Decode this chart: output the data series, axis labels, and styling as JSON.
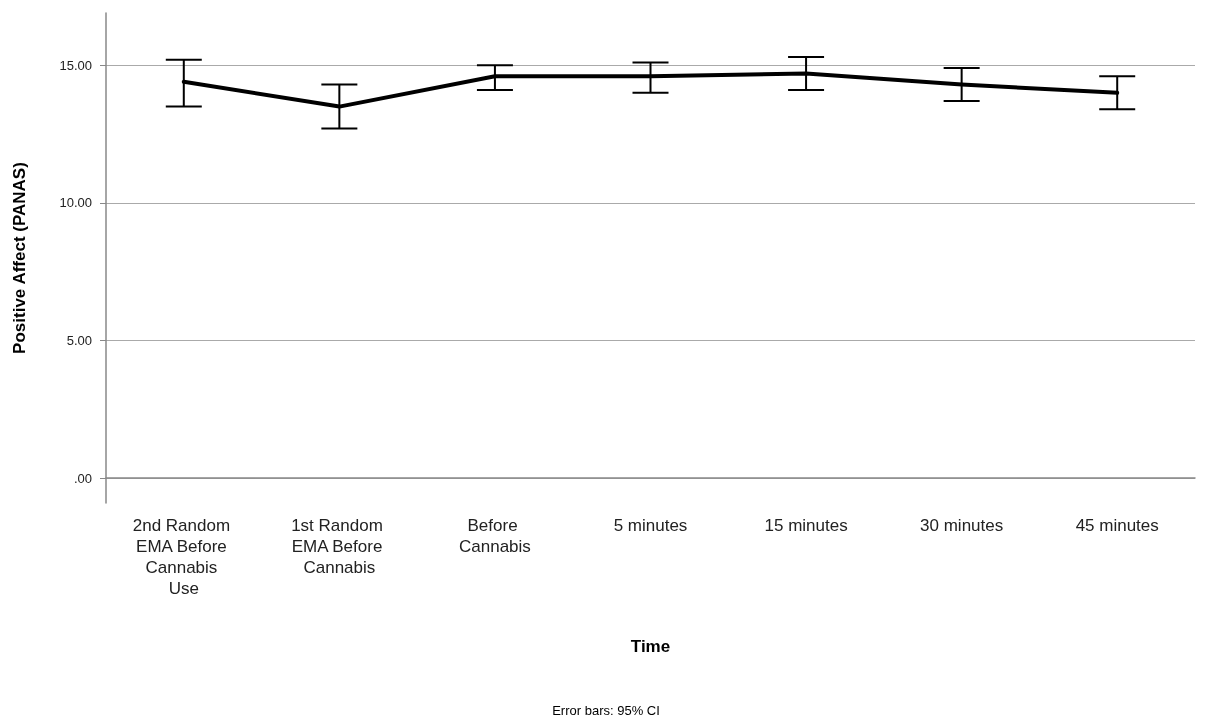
{
  "chart_data": {
    "type": "line",
    "xlabel": "Time",
    "ylabel": "Positive Affect (PANAS)",
    "categories": [
      "2nd Random EMA Before Cannabis Use",
      "1st Random EMA Before Cannabis",
      "Before Cannabis",
      "5 minutes",
      "15 minutes",
      "30 minutes",
      "45 minutes"
    ],
    "series": [
      {
        "color": "#000000",
        "values": [
          14.4,
          13.5,
          14.6,
          14.6,
          14.7,
          14.3,
          14.0
        ],
        "errors": [
          [
            13.5,
            15.2
          ],
          [
            12.7,
            14.3
          ],
          [
            14.1,
            15.0
          ],
          [
            14.0,
            15.1
          ],
          [
            14.1,
            15.3
          ],
          [
            13.7,
            14.9
          ],
          [
            13.4,
            14.6
          ]
        ]
      }
    ],
    "ylim": [
      -0.9,
      16.9
    ],
    "yticks": [
      {
        "value": 0,
        "label": ".00"
      },
      {
        "value": 5,
        "label": "5.00"
      },
      {
        "value": 10,
        "label": "10.00"
      },
      {
        "value": 15,
        "label": "15.00"
      }
    ],
    "grid": "y",
    "marker": "none",
    "line_style": "solid",
    "annotations": [
      "Error bars: 95% CI"
    ]
  }
}
